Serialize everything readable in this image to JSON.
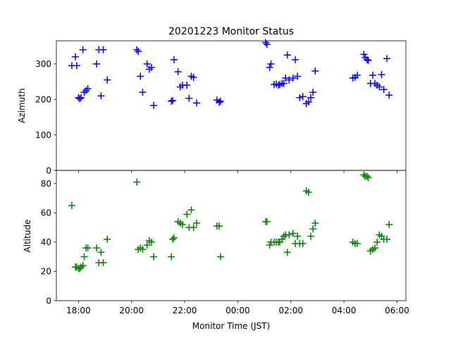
{
  "chart_data": [
    {
      "type": "scatter",
      "title": "20201223 Monitor Status",
      "ylabel": "Azimuth",
      "xlabel": "",
      "color": "#0000ff",
      "marker": "plus",
      "ylim": [
        0,
        365
      ],
      "y_ticks": [
        0,
        100,
        200,
        300
      ],
      "x_ticks": [],
      "series": [
        {
          "points": [
            [
              "17:45",
              295
            ],
            [
              "17:53",
              320
            ],
            [
              "17:56",
              295
            ],
            [
              "18:00",
              205
            ],
            [
              "18:03",
              202
            ],
            [
              "18:06",
              205
            ],
            [
              "18:10",
              340
            ],
            [
              "18:13",
              220
            ],
            [
              "18:17",
              225
            ],
            [
              "18:21",
              230
            ],
            [
              "18:41",
              300
            ],
            [
              "18:46",
              340
            ],
            [
              "18:51",
              210
            ],
            [
              "18:56",
              340
            ],
            [
              "19:05",
              255
            ],
            [
              "20:12",
              340
            ],
            [
              "20:15",
              335
            ],
            [
              "20:20",
              265
            ],
            [
              "20:25",
              220
            ],
            [
              "20:35",
              300
            ],
            [
              "20:40",
              285
            ],
            [
              "20:45",
              290
            ],
            [
              "20:50",
              183
            ],
            [
              "21:30",
              195
            ],
            [
              "21:33",
              197
            ],
            [
              "21:36",
              312
            ],
            [
              "21:45",
              278
            ],
            [
              "21:50",
              235
            ],
            [
              "21:55",
              240
            ],
            [
              "22:05",
              240
            ],
            [
              "22:10",
              203
            ],
            [
              "22:15",
              265
            ],
            [
              "22:20",
              262
            ],
            [
              "22:27",
              190
            ],
            [
              "23:13",
              198
            ],
            [
              "23:18",
              192
            ],
            [
              "23:21",
              195
            ],
            [
              "01:03",
              360
            ],
            [
              "01:06",
              355
            ],
            [
              "01:12",
              290
            ],
            [
              "01:15",
              300
            ],
            [
              "01:22",
              242
            ],
            [
              "01:27",
              243
            ],
            [
              "01:32",
              240
            ],
            [
              "01:35",
              242
            ],
            [
              "01:40",
              245
            ],
            [
              "01:44",
              245
            ],
            [
              "01:48",
              260
            ],
            [
              "01:52",
              325
            ],
            [
              "01:56",
              255
            ],
            [
              "02:05",
              260
            ],
            [
              "02:10",
              312
            ],
            [
              "02:15",
              265
            ],
            [
              "02:20",
              205
            ],
            [
              "02:27",
              208
            ],
            [
              "02:35",
              188
            ],
            [
              "02:40",
              193
            ],
            [
              "02:45",
              205
            ],
            [
              "02:50",
              220
            ],
            [
              "02:55",
              280
            ],
            [
              "04:20",
              260
            ],
            [
              "04:25",
              262
            ],
            [
              "04:30",
              268
            ],
            [
              "04:45",
              327
            ],
            [
              "04:48",
              318
            ],
            [
              "04:52",
              312
            ],
            [
              "04:55",
              310
            ],
            [
              "05:00",
              245
            ],
            [
              "05:05",
              268
            ],
            [
              "05:10",
              245
            ],
            [
              "05:15",
              240
            ],
            [
              "05:20",
              235
            ],
            [
              "05:25",
              270
            ],
            [
              "05:30",
              228
            ],
            [
              "05:37",
              315
            ],
            [
              "05:42",
              212
            ]
          ]
        }
      ]
    },
    {
      "type": "scatter",
      "title": "",
      "ylabel": "Altitude",
      "xlabel": "Monitor Time (JST)",
      "color": "#008000",
      "marker": "plus",
      "ylim": [
        0,
        89
      ],
      "y_ticks": [
        0,
        20,
        40,
        60,
        80
      ],
      "x_ticks": [
        "18:00",
        "20:00",
        "22:00",
        "00:00",
        "02:00",
        "04:00",
        "06:00"
      ],
      "x_range": [
        "17:10",
        "06:20"
      ],
      "series": [
        {
          "points": [
            [
              "17:45",
              65
            ],
            [
              "17:53",
              23
            ],
            [
              "17:56",
              23
            ],
            [
              "18:00",
              22
            ],
            [
              "18:03",
              22
            ],
            [
              "18:06",
              23
            ],
            [
              "18:10",
              24
            ],
            [
              "18:13",
              30
            ],
            [
              "18:17",
              36
            ],
            [
              "18:21",
              36
            ],
            [
              "18:41",
              36
            ],
            [
              "18:46",
              26
            ],
            [
              "18:51",
              33
            ],
            [
              "18:56",
              26
            ],
            [
              "19:05",
              42
            ],
            [
              "20:12",
              81
            ],
            [
              "20:15",
              35
            ],
            [
              "20:20",
              36
            ],
            [
              "20:25",
              35
            ],
            [
              "20:35",
              38
            ],
            [
              "20:40",
              41
            ],
            [
              "20:45",
              40
            ],
            [
              "20:50",
              30
            ],
            [
              "21:30",
              30
            ],
            [
              "21:33",
              42
            ],
            [
              "21:36",
              43
            ],
            [
              "21:45",
              54
            ],
            [
              "21:50",
              53
            ],
            [
              "21:55",
              52
            ],
            [
              "22:05",
              59
            ],
            [
              "22:10",
              50
            ],
            [
              "22:15",
              62
            ],
            [
              "22:20",
              50
            ],
            [
              "22:27",
              53
            ],
            [
              "23:13",
              51
            ],
            [
              "23:18",
              51
            ],
            [
              "23:21",
              30
            ],
            [
              "01:03",
              54
            ],
            [
              "01:06",
              54
            ],
            [
              "01:12",
              38
            ],
            [
              "01:15",
              40
            ],
            [
              "01:22",
              40
            ],
            [
              "01:27",
              40
            ],
            [
              "01:32",
              40
            ],
            [
              "01:35",
              40
            ],
            [
              "01:40",
              42
            ],
            [
              "01:44",
              44
            ],
            [
              "01:48",
              45
            ],
            [
              "01:52",
              33
            ],
            [
              "01:56",
              45
            ],
            [
              "02:05",
              46
            ],
            [
              "02:10",
              39
            ],
            [
              "02:15",
              44
            ],
            [
              "02:20",
              39
            ],
            [
              "02:27",
              39
            ],
            [
              "02:35",
              75
            ],
            [
              "02:40",
              74
            ],
            [
              "02:45",
              44
            ],
            [
              "02:50",
              49
            ],
            [
              "02:55",
              53
            ],
            [
              "04:20",
              40
            ],
            [
              "04:25",
              39
            ],
            [
              "04:30",
              39
            ],
            [
              "04:45",
              86
            ],
            [
              "04:48",
              85
            ],
            [
              "04:52",
              85
            ],
            [
              "04:55",
              84
            ],
            [
              "05:00",
              34
            ],
            [
              "05:05",
              35
            ],
            [
              "05:10",
              36
            ],
            [
              "05:15",
              40
            ],
            [
              "05:20",
              45
            ],
            [
              "05:25",
              44
            ],
            [
              "05:30",
              42
            ],
            [
              "05:37",
              42
            ],
            [
              "05:42",
              52
            ]
          ]
        }
      ]
    }
  ]
}
